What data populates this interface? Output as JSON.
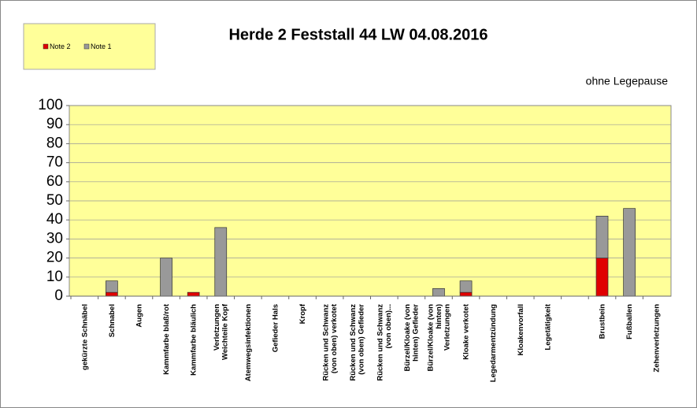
{
  "chart_data": {
    "type": "stacked_bar",
    "title": "Herde 2 Feststall 44 LW 04.08.2016",
    "subtitle": "ohne Legepause",
    "categories": [
      "gekürzte Schnäbel",
      "Schnabel",
      "Augen",
      "Kammfarbe blaß/rot",
      "Kammfarbe bläulich",
      "Verletzungen Weichteile Kopf",
      "Atemwegsinfektionen",
      "Gefieder Hals",
      "Kropf",
      "Rücken und Schwanz (von oben) verkotet",
      "Rücken und Schwanz (von oben) Gefieder",
      "Rücken und Schwanz (von oben)...",
      "Bürzel/Kloake (von hinten) Gefieder",
      "Bürzel/Kloake (von hinten) Verletzungen",
      "Kloake verkotet",
      "Legedarmentzündung",
      "Kloakenvorfall",
      "Legetätigkeit",
      null,
      "Brustbein",
      "Fußballen",
      "Zehenverletzungen"
    ],
    "series": [
      {
        "name": "Note 2",
        "color": "#e00000",
        "values": [
          0,
          2,
          0,
          0,
          2,
          0,
          0,
          0,
          0,
          0,
          0,
          0,
          0,
          0,
          2,
          0,
          0,
          0,
          0,
          20,
          0,
          0
        ]
      },
      {
        "name": "Note 1",
        "color": "#999999",
        "values": [
          0,
          6,
          0,
          20,
          0,
          36,
          0,
          0,
          0,
          0,
          0,
          0,
          0,
          4,
          6,
          0,
          0,
          0,
          0,
          22,
          46,
          0
        ]
      }
    ],
    "ylim": [
      0,
      100
    ],
    "yticks": [
      0,
      10,
      20,
      30,
      40,
      50,
      60,
      70,
      80,
      90,
      100
    ],
    "grid": true,
    "legend": "top-left"
  }
}
